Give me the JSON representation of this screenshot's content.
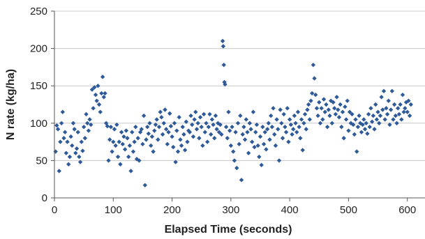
{
  "chart_data": {
    "type": "scatter",
    "title": "",
    "xlabel": "Elapsed Time (seconds)",
    "ylabel": "N rate (kg/ha)",
    "xlim": [
      0,
      630
    ],
    "ylim": [
      0,
      250
    ],
    "xticks": [
      0,
      100,
      200,
      300,
      400,
      500,
      600
    ],
    "yticks": [
      0,
      50,
      100,
      150,
      200,
      250
    ],
    "grid": "horizontal",
    "legend": "none",
    "colors": {
      "marker": "#2f5a99",
      "gridline": "#c8c8c8",
      "axis": "#555555"
    },
    "series": [
      {
        "marker": "diamond",
        "points": [
          [
            2,
            62
          ],
          [
            4,
            97
          ],
          [
            6,
            92
          ],
          [
            8,
            36
          ],
          [
            10,
            75
          ],
          [
            12,
            100
          ],
          [
            14,
            115
          ],
          [
            16,
            80
          ],
          [
            18,
            88
          ],
          [
            20,
            60
          ],
          [
            22,
            75
          ],
          [
            24,
            45
          ],
          [
            26,
            55
          ],
          [
            28,
            82
          ],
          [
            30,
            70
          ],
          [
            32,
            100
          ],
          [
            34,
            92
          ],
          [
            36,
            60
          ],
          [
            38,
            66
          ],
          [
            40,
            88
          ],
          [
            42,
            55
          ],
          [
            44,
            48
          ],
          [
            46,
            75
          ],
          [
            48,
            63
          ],
          [
            50,
            95
          ],
          [
            52,
            80
          ],
          [
            54,
            112
          ],
          [
            56,
            100
          ],
          [
            58,
            90
          ],
          [
            60,
            105
          ],
          [
            62,
            98
          ],
          [
            64,
            145
          ],
          [
            66,
            120
          ],
          [
            68,
            148
          ],
          [
            70,
            138
          ],
          [
            72,
            130
          ],
          [
            74,
            150
          ],
          [
            76,
            125
          ],
          [
            78,
            115
          ],
          [
            80,
            140
          ],
          [
            82,
            162
          ],
          [
            84,
            135
          ],
          [
            86,
            140
          ],
          [
            88,
            100
          ],
          [
            90,
            96
          ],
          [
            92,
            50
          ],
          [
            94,
            78
          ],
          [
            96,
            95
          ],
          [
            98,
            62
          ],
          [
            100,
            75
          ],
          [
            102,
            92
          ],
          [
            104,
            70
          ],
          [
            106,
            98
          ],
          [
            108,
            55
          ],
          [
            110,
            75
          ],
          [
            112,
            45
          ],
          [
            114,
            88
          ],
          [
            116,
            72
          ],
          [
            118,
            82
          ],
          [
            120,
            65
          ],
          [
            122,
            90
          ],
          [
            124,
            80
          ],
          [
            126,
            55
          ],
          [
            128,
            70
          ],
          [
            130,
            36
          ],
          [
            132,
            88
          ],
          [
            134,
            62
          ],
          [
            136,
            75
          ],
          [
            138,
            95
          ],
          [
            140,
            52
          ],
          [
            142,
            80
          ],
          [
            144,
            50
          ],
          [
            146,
            88
          ],
          [
            148,
            92
          ],
          [
            150,
            72
          ],
          [
            152,
            110
          ],
          [
            154,
            17
          ],
          [
            156,
            78
          ],
          [
            158,
            95
          ],
          [
            160,
            86
          ],
          [
            162,
            100
          ],
          [
            164,
            70
          ],
          [
            166,
            82
          ],
          [
            168,
            62
          ],
          [
            170,
            90
          ],
          [
            172,
            98
          ],
          [
            174,
            105
          ],
          [
            176,
            78
          ],
          [
            178,
            95
          ],
          [
            180,
            115
          ],
          [
            182,
            108
          ],
          [
            184,
            85
          ],
          [
            186,
            100
          ],
          [
            188,
            118
          ],
          [
            190,
            92
          ],
          [
            192,
            72
          ],
          [
            194,
            88
          ],
          [
            196,
            113
          ],
          [
            198,
            96
          ],
          [
            200,
            82
          ],
          [
            202,
            68
          ],
          [
            204,
            100
          ],
          [
            206,
            48
          ],
          [
            208,
            90
          ],
          [
            210,
            62
          ],
          [
            212,
            108
          ],
          [
            214,
            78
          ],
          [
            216,
            70
          ],
          [
            218,
            95
          ],
          [
            220,
            85
          ],
          [
            222,
            64
          ],
          [
            224,
            102
          ],
          [
            226,
            75
          ],
          [
            228,
            90
          ],
          [
            230,
            88
          ],
          [
            232,
            110
          ],
          [
            234,
            98
          ],
          [
            236,
            82
          ],
          [
            238,
            105
          ],
          [
            240,
            115
          ],
          [
            242,
            92
          ],
          [
            244,
            100
          ],
          [
            246,
            80
          ],
          [
            248,
            108
          ],
          [
            250,
            95
          ],
          [
            252,
            70
          ],
          [
            254,
            112
          ],
          [
            256,
            88
          ],
          [
            258,
            100
          ],
          [
            260,
            75
          ],
          [
            262,
            95
          ],
          [
            264,
            112
          ],
          [
            266,
            85
          ],
          [
            268,
            105
          ],
          [
            270,
            98
          ],
          [
            272,
            80
          ],
          [
            274,
            110
          ],
          [
            276,
            92
          ],
          [
            278,
            100
          ],
          [
            280,
            88
          ],
          [
            282,
            98
          ],
          [
            284,
            85
          ],
          [
            286,
            210
          ],
          [
            287,
            203
          ],
          [
            288,
            178
          ],
          [
            289,
            155
          ],
          [
            290,
            152
          ],
          [
            292,
            95
          ],
          [
            294,
            80
          ],
          [
            296,
            115
          ],
          [
            298,
            90
          ],
          [
            300,
            70
          ],
          [
            302,
            95
          ],
          [
            304,
            62
          ],
          [
            306,
            50
          ],
          [
            308,
            88
          ],
          [
            310,
            40
          ],
          [
            312,
            100
          ],
          [
            314,
            72
          ],
          [
            316,
            110
          ],
          [
            318,
            24
          ],
          [
            320,
            85
          ],
          [
            322,
            95
          ],
          [
            324,
            78
          ],
          [
            326,
            105
          ],
          [
            328,
            88
          ],
          [
            330,
            60
          ],
          [
            332,
            100
          ],
          [
            334,
            92
          ],
          [
            336,
            75
          ],
          [
            338,
            115
          ],
          [
            340,
            68
          ],
          [
            342,
            88
          ],
          [
            344,
            98
          ],
          [
            346,
            70
          ],
          [
            348,
            55
          ],
          [
            350,
            82
          ],
          [
            352,
            44
          ],
          [
            354,
            95
          ],
          [
            356,
            72
          ],
          [
            358,
            88
          ],
          [
            360,
            65
          ],
          [
            362,
            92
          ],
          [
            364,
            100
          ],
          [
            366,
            78
          ],
          [
            368,
            110
          ],
          [
            370,
            95
          ],
          [
            372,
            120
          ],
          [
            374,
            85
          ],
          [
            376,
            70
          ],
          [
            378,
            105
          ],
          [
            380,
            92
          ],
          [
            382,
            50
          ],
          [
            384,
            118
          ],
          [
            386,
            100
          ],
          [
            388,
            80
          ],
          [
            390,
            112
          ],
          [
            392,
            95
          ],
          [
            394,
            88
          ],
          [
            396,
            120
          ],
          [
            398,
            75
          ],
          [
            400,
            105
          ],
          [
            402,
            98
          ],
          [
            404,
            85
          ],
          [
            406,
            92
          ],
          [
            408,
            110
          ],
          [
            410,
            100
          ],
          [
            412,
            88
          ],
          [
            414,
            115
          ],
          [
            416,
            95
          ],
          [
            418,
            80
          ],
          [
            420,
            105
          ],
          [
            422,
            64
          ],
          [
            424,
            100
          ],
          [
            426,
            112
          ],
          [
            428,
            92
          ],
          [
            430,
            118
          ],
          [
            432,
            125
          ],
          [
            434,
            105
          ],
          [
            436,
            130
          ],
          [
            438,
            140
          ],
          [
            440,
            178
          ],
          [
            442,
            160
          ],
          [
            444,
            138
          ],
          [
            446,
            120
          ],
          [
            448,
            110
          ],
          [
            450,
            128
          ],
          [
            452,
            100
          ],
          [
            454,
            120
          ],
          [
            456,
            105
          ],
          [
            458,
            132
          ],
          [
            460,
            115
          ],
          [
            462,
            125
          ],
          [
            464,
            95
          ],
          [
            466,
            118
          ],
          [
            468,
            110
          ],
          [
            470,
            130
          ],
          [
            472,
            100
          ],
          [
            474,
            128
          ],
          [
            476,
            120
          ],
          [
            478,
            112
          ],
          [
            480,
            135
          ],
          [
            482,
            118
          ],
          [
            484,
            108
          ],
          [
            486,
            125
          ],
          [
            488,
            95
          ],
          [
            490,
            115
          ],
          [
            492,
            80
          ],
          [
            494,
            122
          ],
          [
            496,
            105
          ],
          [
            498,
            130
          ],
          [
            500,
            90
          ],
          [
            502,
            115
          ],
          [
            504,
            100
          ],
          [
            506,
            112
          ],
          [
            508,
            98
          ],
          [
            510,
            85
          ],
          [
            512,
            105
          ],
          [
            514,
            62
          ],
          [
            516,
            95
          ],
          [
            518,
            110
          ],
          [
            520,
            100
          ],
          [
            522,
            88
          ],
          [
            524,
            98
          ],
          [
            526,
            105
          ],
          [
            528,
            92
          ],
          [
            530,
            100
          ],
          [
            532,
            86
          ],
          [
            534,
            112
          ],
          [
            536,
            95
          ],
          [
            538,
            120
          ],
          [
            540,
            102
          ],
          [
            542,
            110
          ],
          [
            544,
            92
          ],
          [
            546,
            125
          ],
          [
            548,
            105
          ],
          [
            550,
            115
          ],
          [
            552,
            100
          ],
          [
            554,
            110
          ],
          [
            556,
            135
          ],
          [
            558,
            118
          ],
          [
            560,
            143
          ],
          [
            562,
            105
          ],
          [
            564,
            120
          ],
          [
            566,
            112
          ],
          [
            568,
            130
          ],
          [
            570,
            98
          ],
          [
            572,
            118
          ],
          [
            574,
            143
          ],
          [
            576,
            105
          ],
          [
            578,
            125
          ],
          [
            580,
            110
          ],
          [
            582,
            100
          ],
          [
            584,
            120
          ],
          [
            586,
            112
          ],
          [
            588,
            125
          ],
          [
            590,
            105
          ],
          [
            592,
            138
          ],
          [
            594,
            115
          ],
          [
            596,
            120
          ],
          [
            598,
            128
          ],
          [
            600,
            115
          ],
          [
            602,
            130
          ],
          [
            604,
            110
          ],
          [
            606,
            125
          ]
        ]
      }
    ]
  }
}
